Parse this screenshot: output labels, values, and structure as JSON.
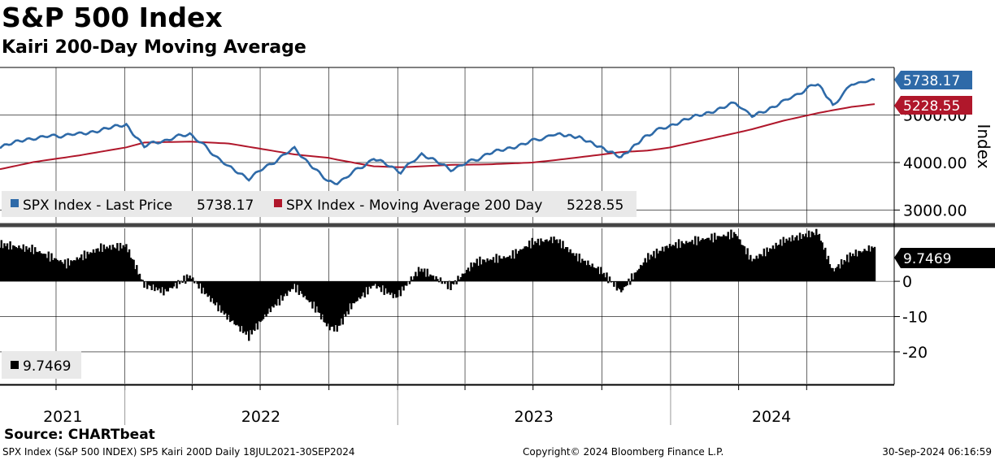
{
  "header": {
    "title": "S&P 500 Index",
    "subtitle": "Kairi 200-Day Moving Average"
  },
  "colors": {
    "price": "#2e6aa8",
    "ma": "#b0172b",
    "kairi": "#000000",
    "grid": "#000000",
    "separator": "#444444",
    "legend_bg": "#e9e9e9"
  },
  "footer": {
    "source": "Source: CHARTbeat",
    "left": "SPX Index (S&P 500 INDEX) SP5 Kairi 200D  Daily 18JUL2021-30SEP2024",
    "center": "Copyright© 2024 Bloomberg Finance L.P.",
    "right": "30-Sep-2024 06:16:59"
  },
  "chart_data": [
    {
      "type": "line",
      "ylabel": "Index",
      "ylim": [
        2700,
        6000
      ],
      "y_ticks": [
        3000,
        4000,
        5000
      ],
      "y_tick_labels": [
        "3000.00",
        "4000.00",
        "5000.00"
      ],
      "grid": true,
      "legend_placement": "bottom-left",
      "x_labels": [
        "2021",
        "2022",
        "2023",
        "2024"
      ],
      "x": [
        "2021-07-18",
        "2021-09-01",
        "2021-11-01",
        "2022-01-03",
        "2022-01-27",
        "2022-03-29",
        "2022-05-20",
        "2022-06-16",
        "2022-08-16",
        "2022-09-30",
        "2022-10-12",
        "2022-11-30",
        "2023-01-05",
        "2023-02-02",
        "2023-03-13",
        "2023-05-01",
        "2023-06-30",
        "2023-07-31",
        "2023-09-01",
        "2023-10-27",
        "2023-12-01",
        "2023-12-29",
        "2024-03-28",
        "2024-04-19",
        "2024-05-31",
        "2024-07-16",
        "2024-08-05",
        "2024-08-30",
        "2024-09-30"
      ],
      "series": [
        {
          "name": "SPX Index - Last Price",
          "last_value": "5738.17",
          "values": [
            4330,
            4520,
            4600,
            4790,
            4350,
            4610,
            3900,
            3670,
            4300,
            3580,
            3570,
            4080,
            3810,
            4180,
            3850,
            4170,
            4450,
            4590,
            4510,
            4120,
            4590,
            4770,
            5250,
            4970,
            5280,
            5670,
            5190,
            5650,
            5738.17
          ]
        },
        {
          "name": "SPX Index - Moving Average 200 Day",
          "last_value": "5228.55",
          "values": [
            3860,
            4010,
            4150,
            4320,
            4420,
            4440,
            4400,
            4330,
            4170,
            4100,
            4060,
            3920,
            3900,
            3920,
            3950,
            3960,
            4000,
            4050,
            4110,
            4220,
            4250,
            4310,
            4620,
            4700,
            4880,
            5040,
            5100,
            5170,
            5228.55
          ]
        }
      ]
    },
    {
      "type": "bar",
      "ylim": [
        -29,
        15
      ],
      "y_ticks": [
        0,
        -10,
        -20
      ],
      "y_tick_labels": [
        "0",
        "-10",
        "-20"
      ],
      "grid": true,
      "legend_placement": "bottom-left",
      "x": [
        "2021-07-18",
        "2021-09-01",
        "2021-10-15",
        "2021-11-30",
        "2022-01-03",
        "2022-01-27",
        "2022-02-24",
        "2022-03-29",
        "2022-04-30",
        "2022-05-20",
        "2022-06-16",
        "2022-07-15",
        "2022-08-16",
        "2022-09-15",
        "2022-09-30",
        "2022-10-12",
        "2022-10-31",
        "2022-11-30",
        "2022-12-30",
        "2023-01-31",
        "2023-03-13",
        "2023-04-15",
        "2023-05-31",
        "2023-06-30",
        "2023-07-31",
        "2023-09-01",
        "2023-09-30",
        "2023-10-27",
        "2023-11-30",
        "2023-12-29",
        "2024-02-15",
        "2024-03-28",
        "2024-04-19",
        "2024-05-31",
        "2024-07-16",
        "2024-08-05",
        "2024-08-30",
        "2024-09-30"
      ],
      "series": [
        {
          "name": "9.7469",
          "last_value": "9.7469",
          "values": [
            10.5,
            9.0,
            5.0,
            9.5,
            10.0,
            -1.0,
            -3.0,
            1.5,
            -6.0,
            -10.5,
            -15.5,
            -8.0,
            -1.5,
            -8.0,
            -13.0,
            -13.5,
            -7.0,
            -1.0,
            -4.5,
            3.5,
            -1.5,
            5.5,
            7.0,
            11.0,
            12.0,
            6.5,
            3.0,
            -3.0,
            6.5,
            10.0,
            12.0,
            13.5,
            6.0,
            11.5,
            14.0,
            3.0,
            7.5,
            9.7469
          ]
        }
      ]
    }
  ]
}
